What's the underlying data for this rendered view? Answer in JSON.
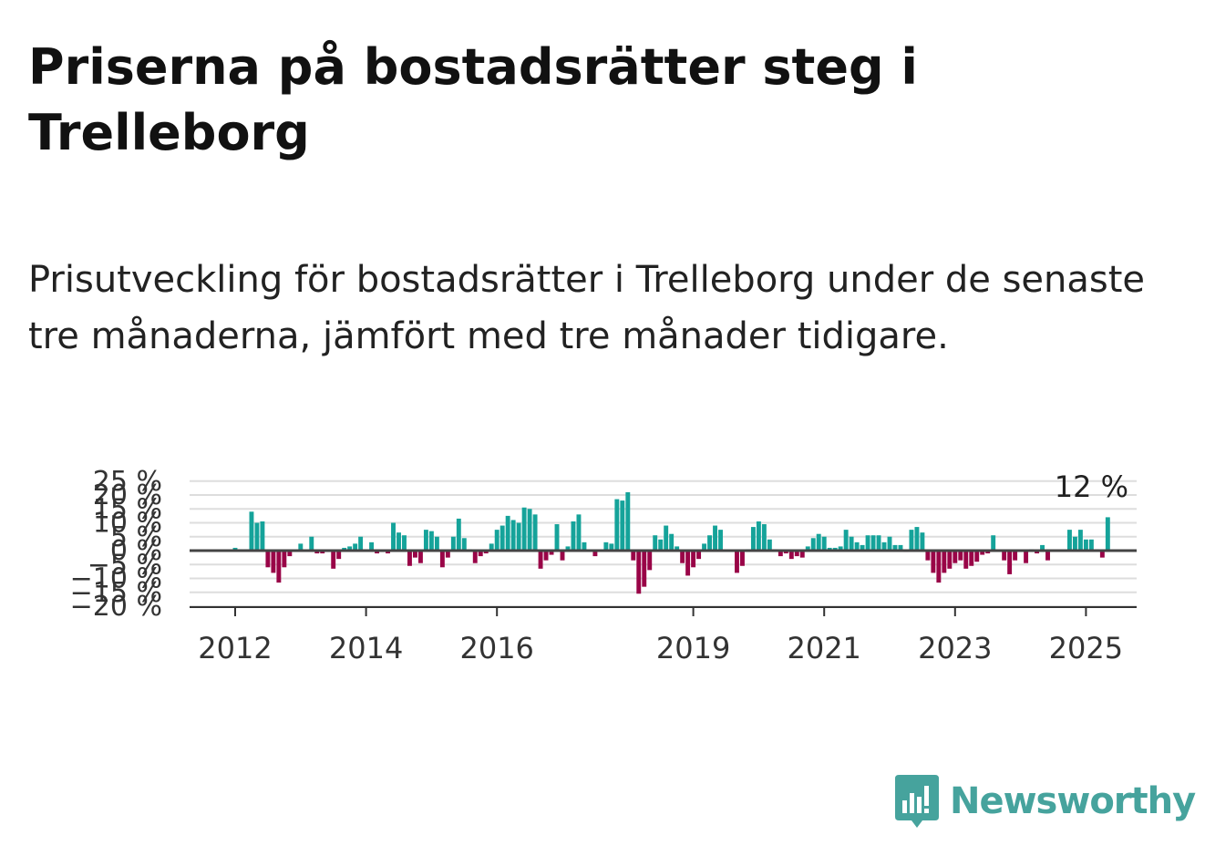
{
  "title": "Priserna på bostadsrätter steg i Trelleborg",
  "subtitle": "Prisutveckling för bostadsrätter i Trelleborg under de senaste tre månaderna, jämfört med tre månader tidigare.",
  "brand": {
    "name": "Newsworthy",
    "color": "#46a39d",
    "icon": "newsworthy-chart-icon"
  },
  "chart_data": {
    "type": "bar",
    "start_year": 2012,
    "start_month": 1,
    "values": [
      1,
      0.5,
      0.5,
      14,
      10,
      10.5,
      -6,
      -8,
      -11.5,
      -6,
      -2,
      0,
      2.5,
      0,
      5,
      -1,
      -1,
      -0.5,
      -6.5,
      -3,
      1,
      1.5,
      2.5,
      5,
      0.5,
      3,
      -1,
      -0.5,
      -1,
      10,
      6.5,
      5.5,
      -5.5,
      -2.5,
      -4.5,
      7.5,
      7,
      5,
      -6,
      -2.5,
      5,
      11.5,
      4.5,
      0.5,
      -4.5,
      -2,
      -1,
      2.5,
      7.5,
      9,
      12.5,
      11,
      10,
      15.5,
      15,
      13,
      -6.5,
      -3.5,
      -1.5,
      9.5,
      -3.5,
      1.5,
      10.5,
      13,
      3,
      0,
      -2,
      0,
      3,
      2.5,
      18.5,
      18,
      21,
      -3.5,
      -15.5,
      -13,
      -7,
      5.5,
      4,
      9,
      6,
      1.5,
      -4.5,
      -9,
      -6,
      -3,
      2.5,
      5.5,
      9,
      7.5,
      0,
      0,
      -8,
      -5.5,
      0.5,
      8.5,
      10.5,
      9.5,
      4,
      0.5,
      -2,
      -1,
      -3,
      -2,
      -2.5,
      1.5,
      4.5,
      6,
      5,
      1,
      1,
      1.5,
      7.5,
      5,
      3,
      2,
      5.5,
      5.5,
      5.5,
      3,
      5,
      2,
      2,
      -0.5,
      7.5,
      8.5,
      6.5,
      -3.5,
      -8,
      -11.5,
      -8,
      -6.5,
      -4.5,
      -3.5,
      -6.5,
      -5.5,
      -4,
      -1.5,
      -1,
      5.5,
      0,
      -3.5,
      -8.5,
      -3.5,
      0,
      -4.5,
      0.5,
      -1,
      2,
      -3.5,
      0,
      0,
      0,
      7.5,
      5,
      7.5,
      4,
      4,
      0.5,
      -2.5,
      12
    ],
    "x_ticks": [
      2012,
      2014,
      2016,
      2019,
      2021,
      2023,
      2025
    ],
    "y_ticks": [
      "25 %",
      "20 %",
      "15 %",
      "10 %",
      "5 %",
      "0 %",
      "−5 %",
      "−10 %",
      "−15 %",
      "−20 %"
    ],
    "y_tick_values": [
      25,
      20,
      15,
      10,
      5,
      0,
      -5,
      -10,
      -15,
      -20
    ],
    "ylim": [
      -20,
      25
    ],
    "last_value_label": "12 %",
    "colors": {
      "positive": "#15a39a",
      "negative": "#990447",
      "grid": "#dddddd",
      "zero": "#444444"
    }
  }
}
